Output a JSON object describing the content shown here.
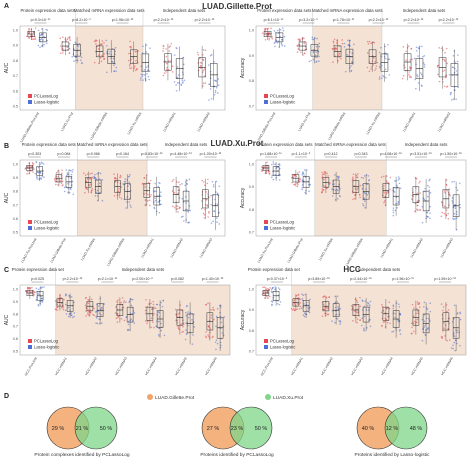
{
  "figure": {
    "panel_a": {
      "letter": "A",
      "title": "LUAD.Gillette.Prot",
      "left": {
        "ylabel": "AUC",
        "yticks": [
          "1.0",
          "0.9",
          "0.8",
          "0.7",
          "0.6",
          "0.5"
        ],
        "groups": [
          "Protein expression data sets",
          "Matched mRNA expression data sets",
          "Independent data sets"
        ],
        "pvals": [
          "p=9.3×10⁻¹⁰",
          "p=8.2×10⁻⁹",
          "p=1.96×10⁻¹³",
          "p<2.2×10⁻¹⁶",
          "p<2.2×10⁻¹⁶"
        ],
        "legend": [
          "PCLassoLog",
          "Lasso-logistic"
        ],
        "xlabels": [
          "LUAD.Gillette.Prot.test",
          "LUAD.Xu.Prot",
          "LUAD.Gillette.mRNA",
          "LUAD.Xu.mRNA",
          "LUAD.mRNA1",
          "LUAD.mRNA2"
        ]
      },
      "right": {
        "ylabel": "Accuracy",
        "yticks": [
          "1.0",
          "0.9",
          "0.8",
          "0.7"
        ],
        "groups": [
          "Protein expression data sets",
          "Matched mRNA expression data sets",
          "Independent data sets"
        ],
        "pvals": [
          "p=6.1×10⁻¹⁰",
          "p=3.2×10⁻⁹",
          "p=1.78×10⁻¹¹",
          "p<2.2×10⁻¹⁶",
          "p<2.2×10⁻¹⁶",
          "p<2.2×10⁻¹⁶"
        ],
        "legend": [
          "PCLassoLog",
          "Lasso-logistic"
        ],
        "xlabels": [
          "LUAD.Gillette.Prot.test",
          "LUAD.Xu.Prot",
          "LUAD.Gillette.mRNA",
          "LUAD.Xu.mRNA",
          "LUAD.mRNA1",
          "LUAD.mRNA2"
        ]
      }
    },
    "panel_b": {
      "letter": "B",
      "title": "LUAD.Xu.Prot",
      "left": {
        "ylabel": "AUC",
        "yticks": [
          "1.0",
          "0.9",
          "0.8",
          "0.7",
          "0.6",
          "0.5"
        ],
        "groups": [
          "Protein expression data sets",
          "Matched mRNA expression data sets",
          "Independent data sets"
        ],
        "pvals": [
          "p=0.303",
          "p=0.084",
          "p=0.066",
          "p=0.164",
          "p=5.83×10⁻¹⁵",
          "p=4.48×10⁻¹⁶",
          "p=1.00×10⁻¹²"
        ],
        "legend": [
          "PCLassoLog",
          "Lasso-logistic"
        ],
        "xlabels": [
          "LUAD.Xu.Prot.test",
          "LUAD.Gillette.Prot",
          "LUAD.Xu.mRNA",
          "LUAD.Gillette.mRNA",
          "LUAD.mRNA1",
          "LUAD.mRNA2",
          "LUAD.mRNA3"
        ]
      },
      "right": {
        "ylabel": "Accuracy",
        "yticks": [
          "1.0",
          "0.9",
          "0.8",
          "0.7"
        ],
        "groups": [
          "Protein expression data sets",
          "Matched mRNA expression data sets",
          "Independent data sets"
        ],
        "pvals": [
          "p=1.68×10⁻¹⁰",
          "p=1.1×10⁻⁹",
          "p=0.412",
          "p=0.343",
          "p=4.08×10⁻¹⁵",
          "p=3.51×10⁻¹⁵",
          "p=1.50×10⁻¹⁵"
        ],
        "legend": [
          "PCLassoLog",
          "Lasso-logistic"
        ],
        "xlabels": [
          "LUAD.Xu.Prot.test",
          "LUAD.Gillette.Prot",
          "LUAD.Xu.mRNA",
          "LUAD.Gillette.mRNA",
          "LUAD.mRNA1",
          "LUAD.mRNA2",
          "LUAD.mRNA3"
        ]
      }
    },
    "panel_c": {
      "letter": "C",
      "title": "HCC",
      "left": {
        "ylabel": "AUC",
        "yticks": [
          "1.0",
          "0.9",
          "0.8",
          "0.7",
          "0.6",
          "0.5"
        ],
        "groups": [
          "Protein expression data set",
          "Independent data sets"
        ],
        "pvals": [
          "p=0.025",
          "p<2.2×10⁻¹⁶",
          "p=2.1×10⁻¹¹",
          "p=2.00×10⁻⁸",
          "p=0.082",
          "p=1.40×10⁻¹³"
        ],
        "legend": [
          "PCLassoLog",
          "Lasso-logistic"
        ],
        "xlabels": [
          "HCC.Prot.test",
          "HCC.mRNA1",
          "HCC.mRNA2",
          "HCC.mRNA3",
          "HCC.mRNA4",
          "HCC.mRNA5",
          "HCC.mRNA6"
        ]
      },
      "right": {
        "ylabel": "Accuracy",
        "yticks": [
          "1.0",
          "0.9",
          "0.8",
          "0.7"
        ],
        "groups": [
          "Protein expression data set",
          "Independent data sets"
        ],
        "pvals": [
          "p=0.37×10⁻⁹",
          "p=3.89×10⁻¹⁶",
          "p=2.44×10⁻¹⁵",
          "p=1.96×10⁻¹¹",
          "p=1.59×10⁻¹³"
        ],
        "legend": [
          "PCLassoLog",
          "Lasso-logistic"
        ],
        "xlabels": [
          "HCC.Prot.test",
          "HCC.mRNA1",
          "HCC.mRNA2",
          "HCC.mRNA3",
          "HCC.mRNA4",
          "HCC.mRNA5",
          "HCC.mRNA6"
        ]
      }
    },
    "panel_d": {
      "letter": "D",
      "legend": [
        "LUAD.Gillette.Prot",
        "LUAD.Xu.Prot"
      ],
      "venns": [
        {
          "left": "29 %",
          "mid": "21 %",
          "right": "50 %",
          "caption": "Protein complexes identified by PCLassoLog"
        },
        {
          "left": "27 %",
          "mid": "23 %",
          "right": "50 %",
          "caption": "Proteins identified by PCLassoLog"
        },
        {
          "left": "40 %",
          "mid": "12 %",
          "right": "48 %",
          "caption": "Proteins identified by Lasso-logistic"
        }
      ]
    },
    "colors": {
      "pclasso": "#e8474f",
      "lasso": "#4d6fd6",
      "shade": "#f4e2d4",
      "venn_left": "#f2a469",
      "venn_right": "#7fd68a"
    }
  }
}
